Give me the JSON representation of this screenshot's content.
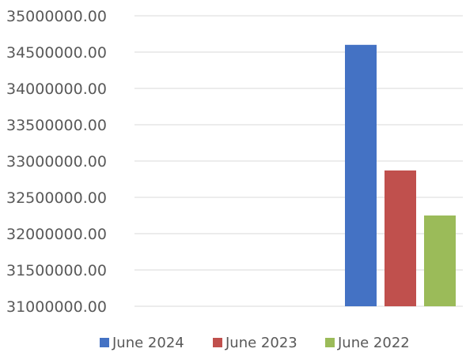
{
  "chart_data": {
    "type": "bar",
    "title": "",
    "xlabel": "",
    "ylabel": "",
    "categories": [
      ""
    ],
    "series": [
      {
        "name": "June 2024",
        "values": [
          34600000
        ],
        "color": "#4472c4"
      },
      {
        "name": "June 2023",
        "values": [
          32870000
        ],
        "color": "#c0504d"
      },
      {
        "name": "June 2022",
        "values": [
          32250000
        ],
        "color": "#9bbb59"
      }
    ],
    "ylim": [
      31000000,
      35000000
    ],
    "ytick_step": 500000,
    "y_tick_labels": [
      "31000000.00",
      "31500000.00",
      "32000000.00",
      "32500000.00",
      "33000000.00",
      "33500000.00",
      "34000000.00",
      "34500000.00",
      "35000000.00"
    ],
    "grid": true,
    "legend_position": "bottom"
  }
}
